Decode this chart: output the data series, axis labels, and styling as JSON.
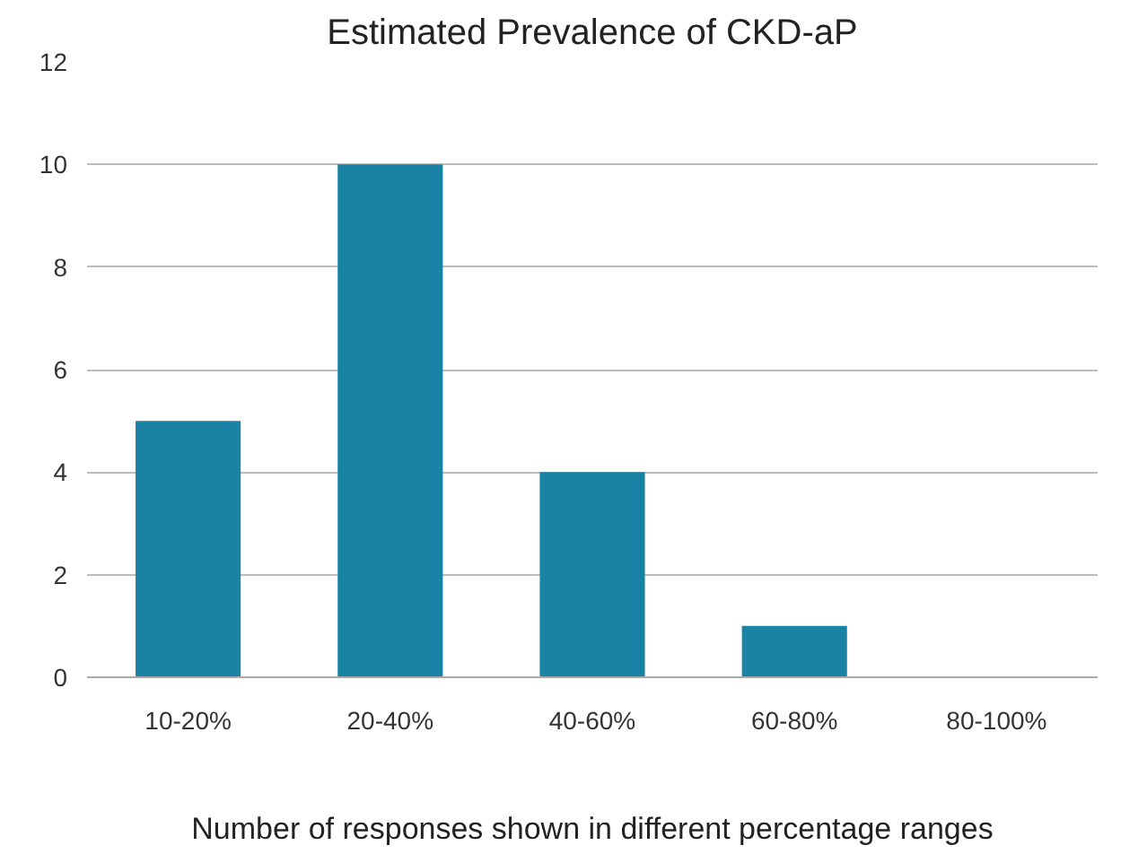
{
  "chart_data": {
    "type": "bar",
    "title": "Estimated Prevalence of CKD-aP",
    "xlabel": "Number of responses shown in different percentage ranges",
    "categories": [
      "10-20%",
      "20-40%",
      "40-60%",
      "60-80%",
      "80-100%"
    ],
    "values": [
      5,
      10,
      4,
      1,
      0
    ],
    "color": "#1a82a5",
    "ylim": [
      0,
      12
    ],
    "yticks": [
      0,
      2,
      4,
      6,
      8,
      10,
      12
    ],
    "grid": "y"
  }
}
